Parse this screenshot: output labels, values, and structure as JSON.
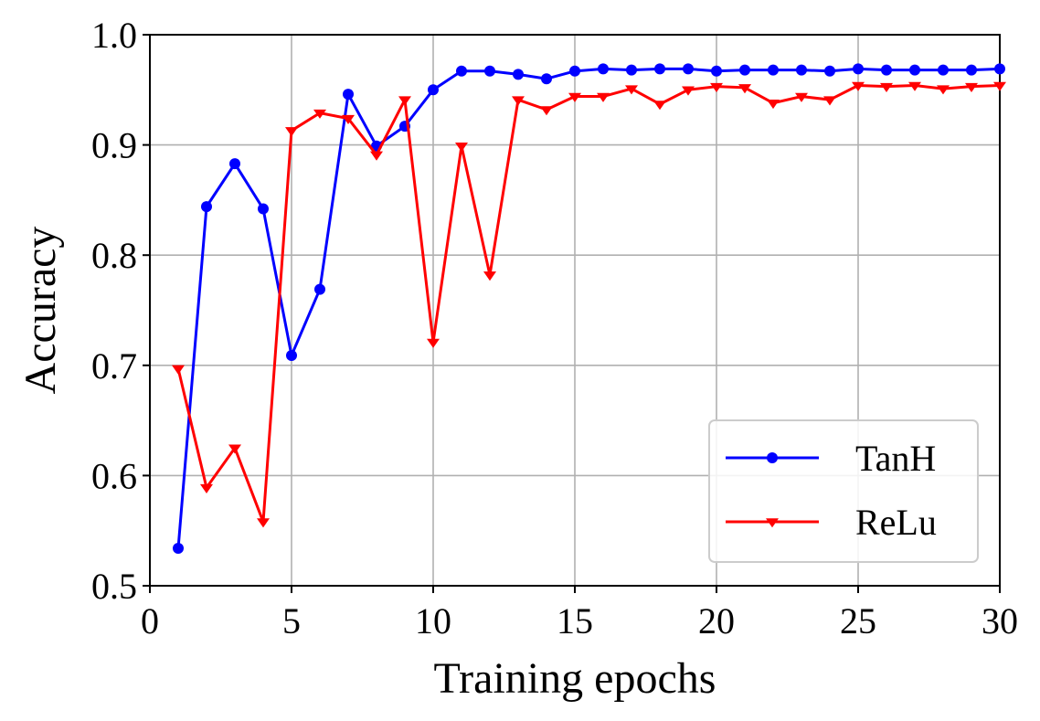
{
  "chart_data": {
    "type": "line",
    "xlabel": "Training epochs",
    "ylabel": "Accuracy",
    "xlim": [
      0,
      30
    ],
    "ylim": [
      0.5,
      1.0
    ],
    "xticks": [
      0,
      5,
      10,
      15,
      20,
      25,
      30
    ],
    "yticks": [
      0.5,
      0.6,
      0.7,
      0.8,
      0.9,
      1.0
    ],
    "xtick_labels": [
      "0",
      "5",
      "10",
      "15",
      "20",
      "25",
      "30"
    ],
    "ytick_labels": [
      "0.5",
      "0.6",
      "0.7",
      "0.8",
      "0.9",
      "1.0"
    ],
    "grid": true,
    "legend_position": "lower-right",
    "x": [
      1,
      2,
      3,
      4,
      5,
      6,
      7,
      8,
      9,
      10,
      11,
      12,
      13,
      14,
      15,
      16,
      17,
      18,
      19,
      20,
      21,
      22,
      23,
      24,
      25,
      26,
      27,
      28,
      29,
      30
    ],
    "series": [
      {
        "name": "TanH",
        "color": "#0000ff",
        "marker": "circle",
        "values": [
          0.534,
          0.844,
          0.883,
          0.842,
          0.709,
          0.769,
          0.946,
          0.899,
          0.917,
          0.95,
          0.967,
          0.967,
          0.964,
          0.96,
          0.967,
          0.969,
          0.968,
          0.969,
          0.969,
          0.967,
          0.968,
          0.968,
          0.968,
          0.967,
          0.969,
          0.968,
          0.968,
          0.968,
          0.968,
          0.969
        ]
      },
      {
        "name": "ReLu",
        "color": "#ff0000",
        "marker": "triangle-down",
        "values": [
          0.697,
          0.589,
          0.625,
          0.558,
          0.913,
          0.929,
          0.924,
          0.891,
          0.941,
          0.721,
          0.899,
          0.782,
          0.941,
          0.932,
          0.944,
          0.944,
          0.951,
          0.937,
          0.95,
          0.953,
          0.952,
          0.938,
          0.944,
          0.941,
          0.954,
          0.953,
          0.954,
          0.951,
          0.953,
          0.954
        ]
      }
    ]
  }
}
